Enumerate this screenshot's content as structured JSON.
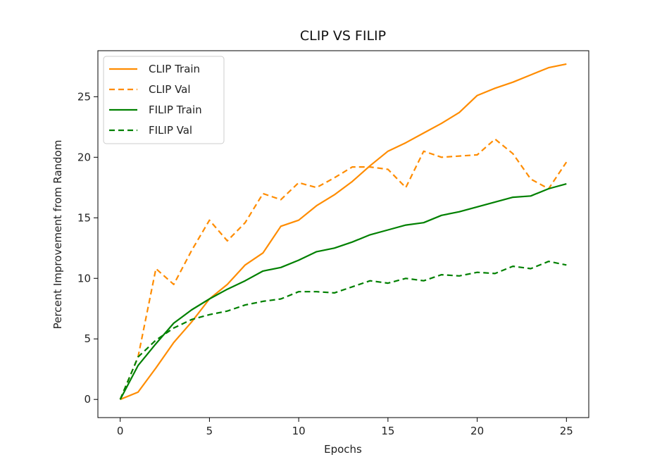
{
  "chart_data": {
    "type": "line",
    "title": "CLIP VS FILIP",
    "xlabel": "Epochs",
    "ylabel": "Percent Improvement from Random",
    "xlim": [
      -1.25,
      26.25
    ],
    "ylim": [
      -1.5,
      28.8
    ],
    "xticks": [
      0,
      5,
      10,
      15,
      20,
      25
    ],
    "yticks": [
      0,
      5,
      10,
      15,
      20,
      25
    ],
    "grid": false,
    "legend_position": "top-left",
    "x": [
      0,
      1,
      2,
      3,
      4,
      5,
      6,
      7,
      8,
      9,
      10,
      11,
      12,
      13,
      14,
      15,
      16,
      17,
      18,
      19,
      20,
      21,
      22,
      23,
      24,
      25
    ],
    "series": [
      {
        "name": "CLIP Train",
        "color": "#ff8c00",
        "style": "solid",
        "values": [
          0.0,
          0.6,
          2.6,
          4.7,
          6.4,
          8.3,
          9.5,
          11.1,
          12.1,
          14.3,
          14.8,
          16.0,
          16.9,
          18.0,
          19.3,
          20.5,
          21.2,
          22.0,
          22.8,
          23.7,
          25.1,
          25.7,
          26.2,
          26.8,
          27.4,
          27.7
        ]
      },
      {
        "name": "CLIP Val",
        "color": "#ff8c00",
        "style": "dashed",
        "values": [
          0.0,
          3.5,
          10.8,
          9.5,
          12.3,
          14.8,
          13.1,
          14.6,
          17.0,
          16.5,
          17.9,
          17.5,
          18.3,
          19.2,
          19.2,
          19.0,
          17.5,
          20.5,
          20.0,
          20.1,
          20.2,
          21.5,
          20.3,
          18.2,
          17.4,
          19.6
        ]
      },
      {
        "name": "FILIP Train",
        "color": "#008000",
        "style": "solid",
        "values": [
          0.0,
          2.8,
          4.6,
          6.3,
          7.4,
          8.3,
          9.1,
          9.8,
          10.6,
          10.9,
          11.5,
          12.2,
          12.5,
          13.0,
          13.6,
          14.0,
          14.4,
          14.6,
          15.2,
          15.5,
          15.9,
          16.3,
          16.7,
          16.8,
          17.4,
          17.8
        ]
      },
      {
        "name": "FILIP Val",
        "color": "#008000",
        "style": "dashed",
        "values": [
          0.0,
          3.5,
          4.9,
          5.9,
          6.6,
          7.0,
          7.3,
          7.8,
          8.1,
          8.3,
          8.9,
          8.9,
          8.8,
          9.3,
          9.8,
          9.6,
          10.0,
          9.8,
          10.3,
          10.2,
          10.5,
          10.4,
          11.0,
          10.8,
          11.4,
          11.1
        ]
      }
    ]
  }
}
